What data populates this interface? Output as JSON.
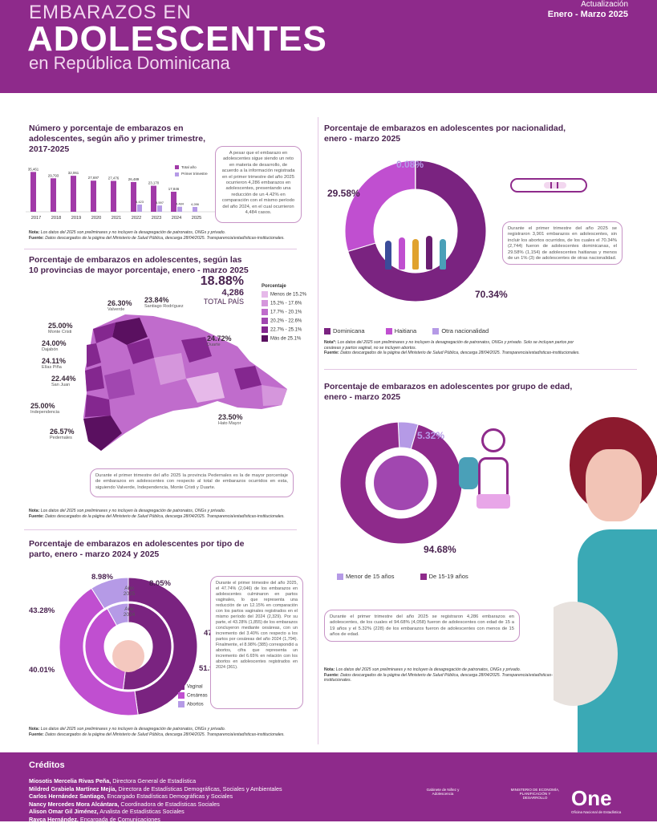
{
  "header": {
    "title_line1": "EMBARAZOS EN",
    "title_line2": "ADOLESCENTES",
    "title_line3": "en República Dominicana",
    "update_label": "Actualización",
    "update_period": "Enero - Marzo 2025"
  },
  "colors": {
    "primary": "#8e2a8b",
    "dark": "#6a1d70",
    "light": "#c98fd6",
    "lavender": "#b59ae6"
  },
  "section1": {
    "title": "Número y porcentaje de embarazos en adolescentes, según año y primer trimestre, 2017-2025",
    "legend_total": "Total año",
    "legend_q1": "Primer trimestre",
    "text": "A pesar que el embarazo en adolescentes sigue siendo un reto en materia de desarrollo, de acuerdo a la información registrada en el primer trimestre del año 2025 ocurrieron 4,286 embarazos en adolescentes, presentando una reducción de un 4.42% en comparación con el mismo período del año 2024, en el cual ocurrieron 4,484 casos.",
    "note_label": "Nota:",
    "note": "Los datos del 2025 son preliminares y no incluyen la desagregación de patronatos, ONGs y privado.",
    "source_label": "Fuente:",
    "source": "Datos descargados de la página del Ministerio de Salud Pública, descarga 28/04/2025. Transparencia/estadísticas-institucionales."
  },
  "section2": {
    "title": "Porcentaje de embarazos en adolescentes, según las 10 provincias de mayor porcentaje, enero - marzo 2025",
    "total_pct": "18.88%",
    "total_n": "4,286",
    "total_label": "TOTAL PAÍS",
    "legend_title": "Porcentaje",
    "legend": [
      {
        "label": "Menos de 15.2%",
        "color": "#e6b9e9"
      },
      {
        "label": "15.2% - 17.6%",
        "color": "#d596dc"
      },
      {
        "label": "17.7% - 20.1%",
        "color": "#c06ccc"
      },
      {
        "label": "20.2% - 22.6%",
        "color": "#a147b0"
      },
      {
        "label": "22.7% - 25.1%",
        "color": "#84278f"
      },
      {
        "label": "Más de 25.1%",
        "color": "#5a1060"
      }
    ],
    "provinces": [
      {
        "pct": "26.30%",
        "name": "Valverde"
      },
      {
        "pct": "23.84%",
        "name": "Santiago Rodríguez"
      },
      {
        "pct": "25.00%",
        "name": "Monte Cristi"
      },
      {
        "pct": "24.00%",
        "name": "Dajabón"
      },
      {
        "pct": "24.11%",
        "name": "Elías Piña"
      },
      {
        "pct": "22.44%",
        "name": "San Juan"
      },
      {
        "pct": "25.00%",
        "name": "Independencia"
      },
      {
        "pct": "26.57%",
        "name": "Pedernales"
      },
      {
        "pct": "24.72%",
        "name": "Duarte"
      },
      {
        "pct": "23.50%",
        "name": "Hato Mayor"
      }
    ],
    "text": "Durante el primer trimestre del año 2025 la provincia Pedernales es la de mayor porcentaje de embarazos en adolescentes con respecto al total de embarazos ocurridos en esta, siguiendo Valverde, Independencia, Monte Cristi y Duarte.",
    "note_label": "Nota:",
    "note": "Los datos del 2025 son preliminares y no incluyen la desagregación de patronatos, ONGs y privado.",
    "source_label": "Fuente:",
    "source": "Datos descargados de la página del Ministerio de Salud Pública, descarga 28/04/2025. Transparencia/estadísticas-institucionales."
  },
  "section3": {
    "title": "Porcentaje de embarazos en adolescentes por tipo de parto, enero - marzo 2024 y 2025",
    "outer_label": "Año 2025",
    "inner_label": "Año 2024",
    "legend": [
      "Vaginal",
      "Cesáreas",
      "Abortos"
    ],
    "text": "Durante el primer trimestre del año 2025, el 47.74% (2,046) de los embarazos en adolescentes culminaron en partos vaginales, lo que representa una reducción de un 12.15% en comparación con los partos vaginales registrados en el mismo período del 2024 (2,329). Por su parte, el 43.28% (1,855) de los embarazos concluyeron mediante cesáreas, con un incremento del 3.40% con respecto a los partos por cesáreas del año 2024 (1,794). Finalmente, el 8.98% (385) correspondió a abortos, cifra que representa un incremento del 6.65% en relación con los abortos en adolescentes registrados en 2024 (361).",
    "note_label": "Nota:",
    "note": "Los datos del 2025 son preliminares y no incluyen la desagregación de patronatos, ONGs y privado.",
    "source_label": "Fuente:",
    "source": "Datos descargados de la página del Ministerio de Salud Pública, descarga 28/04/2025. Transparencia/estadísticas-institucionales."
  },
  "section4": {
    "title": "Porcentaje de embarazos en adolescentes por nacionalidad, enero - marzo 2025",
    "legend": [
      "Dominicana",
      "Haitiana",
      "Otra nacionalidad"
    ],
    "text": "Durante el primer trimestre del año 2025 se registraron 3,901 embarazos en adolescentes, sin incluir los abortos ocurridos, de los cuales el 70.34% (2,744) fueron de adolescentes dominicanas, el 29.58% (1,154) de adolescentes haitianas y menos de un 1% (3) de adolescentes de otras nacionalidad.",
    "note_label": "Nota*:",
    "note": "Los datos del 2025 son preliminares y no incluyen la desagregación de patronatos, ONGs y privado. Solo se incluyen partos por cesáreas y partos vaginal, no se incluyen abortos.",
    "source_label": "Fuente:",
    "source": "Datos descargados de la página del Ministerio de Salud Pública, descarga 28/04/2025. Transparencia/estadísticas-institucionales."
  },
  "section5": {
    "title": "Porcentaje de embarazos en adolescentes por grupo de edad, enero - marzo 2025",
    "legend": [
      "Menor de 15 años",
      "De 15-19 años"
    ],
    "text": "Durante el primer trimestre del año 2025 se registraron 4,286 embarazos en adolescentes, de los cuales el 94.68% (4,058) fueron de adolescentes con edad de 15 a 19 años y el 5.32% (228) de los embarazos fueron de adolescentes con menos de 15 años de edad.",
    "note_label": "Nota:",
    "note": "Los datos del 2025 son preliminares y no incluyen la desagregación de patronatos, ONGs y privado.",
    "source_label": "Fuente:",
    "source": "Datos descargados de la página del Ministerio de Salud Pública, descarga 28/04/2025. Transparencia/estadísticas-institucionales."
  },
  "credits": {
    "title": "Créditos",
    "people": [
      {
        "name": "Miosotis Mercelia Rivas Peña,",
        "role": "Directora General de Estadística"
      },
      {
        "name": "Mildred Grabiela Martínez Mejía,",
        "role": "Directora de Estadísticas Demográficas, Sociales y Ambientales"
      },
      {
        "name": "Carlos Hernández Santiago,",
        "role": "Encargado Estadísticas Demográficas y Sociales"
      },
      {
        "name": "Nancy Mercedes Mora Alcántara,",
        "role": "Coordinadora de Estadísticas Sociales"
      },
      {
        "name": "Alison Omar Gil Jiménez,",
        "role": "Analista de Estadísticas Sociales"
      },
      {
        "name": "Rayca Hernández,",
        "role": "Encargada de Comunicaciones"
      }
    ],
    "logo1": "Gabinete de Niñez y Adolescencia",
    "logo2": "MINISTERIO DE ECONOMÍA, PLANIFICACIÓN Y DESARROLLO",
    "logo3_big": "One",
    "logo3_small": "Oficina Nacional de Estadística"
  },
  "chart_data": [
    {
      "type": "bar",
      "categories": [
        "2017",
        "2018",
        "2019",
        "2020",
        "2021",
        "2022",
        "2023",
        "2024",
        "2025"
      ],
      "series": [
        {
          "name": "Total año",
          "values": [
            35461,
            29793,
            32061,
            27697,
            27476,
            26489,
            23170,
            17846,
            4286
          ]
        },
        {
          "name": "Primer trimestre",
          "values": [
            null,
            null,
            null,
            null,
            null,
            6423,
            5597,
            4484,
            4286
          ]
        }
      ]
    },
    {
      "type": "pie",
      "title": "Año 2025",
      "categories": [
        "Vaginal",
        "Cesáreas",
        "Abortos"
      ],
      "values": [
        47.74,
        43.28,
        8.98
      ]
    },
    {
      "type": "pie",
      "title": "Año 2024",
      "categories": [
        "Vaginal",
        "Cesáreas",
        "Abortos"
      ],
      "values": [
        51.94,
        40.01,
        8.05
      ]
    },
    {
      "type": "pie",
      "categories": [
        "Dominicana",
        "Haitiana",
        "Otra nacionalidad"
      ],
      "values": [
        70.34,
        29.58,
        0.08
      ]
    },
    {
      "type": "pie",
      "categories": [
        "Menor de 15 años",
        "De 15-19 años"
      ],
      "values": [
        5.32,
        94.68
      ]
    }
  ]
}
